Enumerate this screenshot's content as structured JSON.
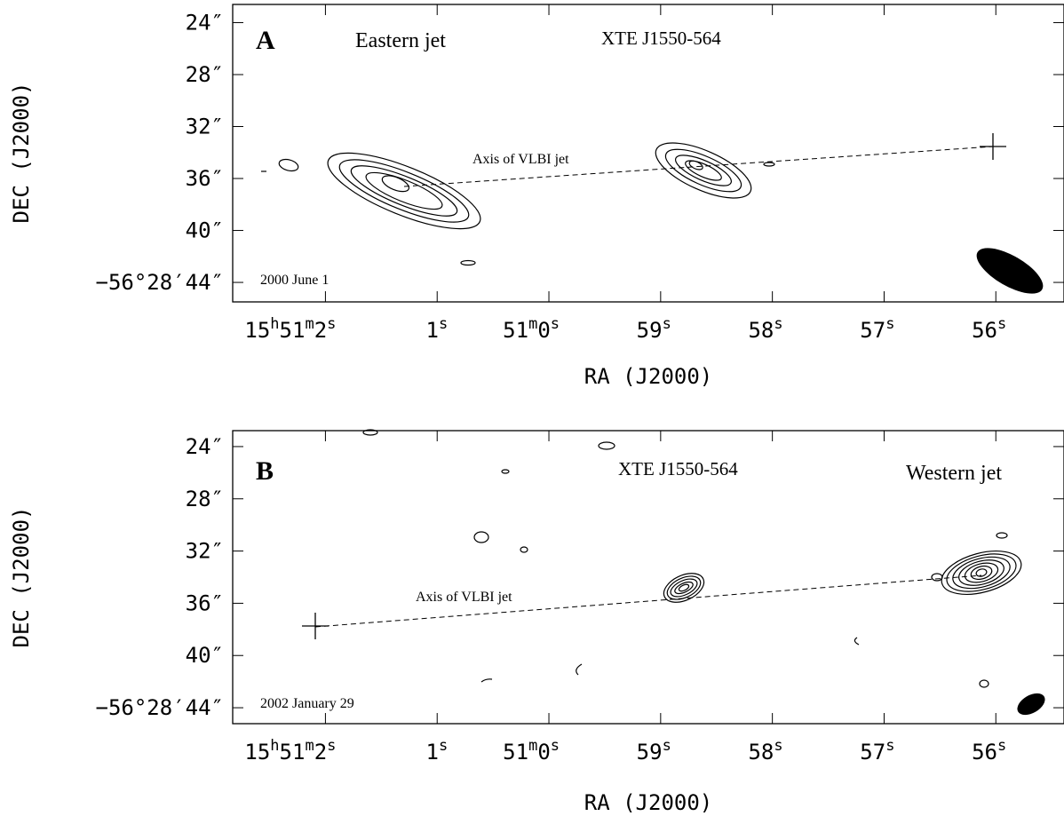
{
  "chart_data": [
    {
      "type": "contour",
      "panel_label": "A",
      "title": "XTE J1550-564",
      "jet_label": "Eastern jet",
      "axis_annotation": "Axis of VLBI jet",
      "date": "2000 June 1",
      "x_label": "RA (J2000)",
      "y_label": "DEC (J2000)",
      "xlim": [
        62.83,
        55.39
      ],
      "xticks": [
        {
          "value": 62,
          "label": "15h51m2s"
        },
        {
          "value": 61,
          "label": "1s"
        },
        {
          "value": 60,
          "label": "51m0s"
        },
        {
          "value": 59,
          "label": "59s"
        },
        {
          "value": 58,
          "label": "58s"
        },
        {
          "value": 57,
          "label": "57s"
        },
        {
          "value": 56,
          "label": "56s"
        }
      ],
      "ylim": [
        22.6,
        45.5
      ],
      "yticks": [
        {
          "value": 24,
          "label": "24″"
        },
        {
          "value": 28,
          "label": "28″"
        },
        {
          "value": 32,
          "label": "32″"
        },
        {
          "value": 36,
          "label": "36″"
        },
        {
          "value": 40,
          "label": "40″"
        },
        {
          "value": 44,
          "label": "−56°28′44″"
        }
      ]
    },
    {
      "type": "contour",
      "panel_label": "B",
      "title": "XTE J1550-564",
      "jet_label": "Western jet",
      "axis_annotation": "Axis of VLBI jet",
      "date": "2002 January 29",
      "x_label": "RA (J2000)",
      "y_label": "DEC (J2000)",
      "xlim": [
        62.83,
        55.39
      ],
      "xticks": [
        {
          "value": 62,
          "label": "15h51m2s"
        },
        {
          "value": 61,
          "label": "1s"
        },
        {
          "value": 60,
          "label": "51m0s"
        },
        {
          "value": 59,
          "label": "59s"
        },
        {
          "value": 58,
          "label": "58s"
        },
        {
          "value": 57,
          "label": "57s"
        },
        {
          "value": 56,
          "label": "56s"
        }
      ],
      "ylim": [
        22.78,
        45.22
      ],
      "yticks": [
        {
          "value": 24,
          "label": "24″"
        },
        {
          "value": 28,
          "label": "28″"
        },
        {
          "value": 32,
          "label": "32″"
        },
        {
          "value": 36,
          "label": "36″"
        },
        {
          "value": 40,
          "label": "40″"
        },
        {
          "value": 44,
          "label": "−56°28′44″"
        }
      ]
    }
  ]
}
